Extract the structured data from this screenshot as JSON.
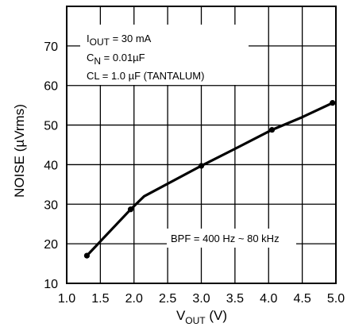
{
  "chart_data": {
    "type": "line",
    "xlabel": {
      "main": "V",
      "sub": "OUT",
      "unit": " (V)"
    },
    "ylabel": "NOISE (µVrms)",
    "xlim": [
      1.0,
      5.0
    ],
    "ylim": [
      10,
      80
    ],
    "xticks": [
      "1.0",
      "1.5",
      "2.0",
      "2.5",
      "3.0",
      "3.5",
      "4.0",
      "4.5",
      "5.0"
    ],
    "yticks": [
      "10",
      "20",
      "30",
      "40",
      "50",
      "60",
      "70"
    ],
    "grid": true,
    "series": [
      {
        "x": [
          1.3,
          1.95,
          2.15,
          3.0,
          3.5,
          4.05,
          4.5,
          4.95
        ],
        "y": [
          17,
          28.7,
          32,
          39.7,
          44,
          48.8,
          52,
          55.6
        ],
        "markers_x": [
          1.3,
          1.95,
          3.0,
          4.05,
          4.95
        ],
        "markers_y": [
          17,
          28.7,
          39.7,
          48.8,
          55.6
        ]
      }
    ],
    "annotations": {
      "conditions": [
        {
          "main": "I",
          "sub": "OUT",
          "rest": " = 30 mA"
        },
        {
          "main": "C",
          "sub": "N",
          "rest": " = 0.01µF"
        },
        {
          "main": "CL = 1.0 µF (TANTALUM)",
          "sub": "",
          "rest": ""
        }
      ],
      "bandwidth": "BPF = 400 Hz ~ 80 kHz"
    }
  }
}
